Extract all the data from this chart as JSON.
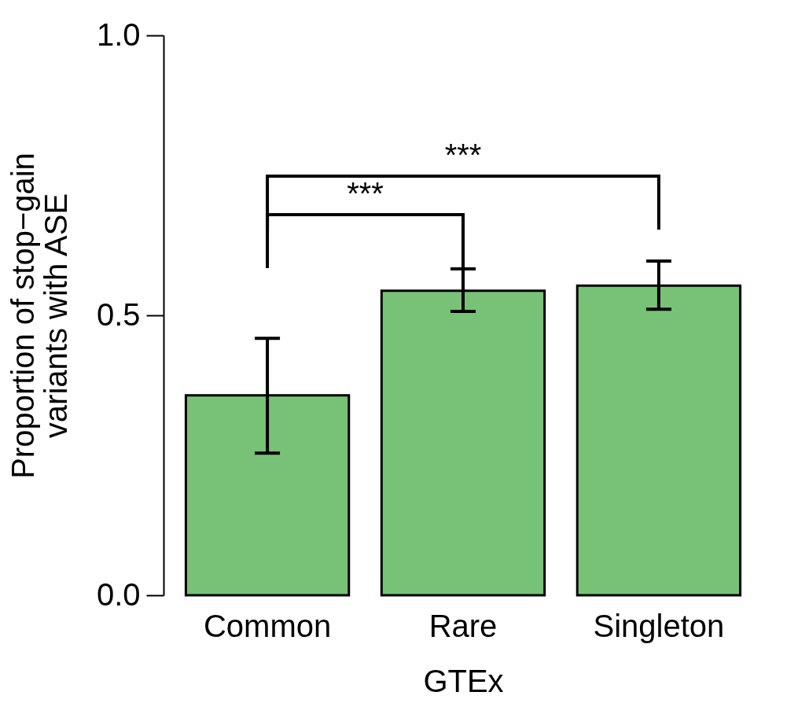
{
  "chart_data": {
    "type": "bar",
    "categories": [
      "Common",
      "Rare",
      "Singleton"
    ],
    "values": [
      0.357,
      0.544,
      0.553
    ],
    "errors": [
      [
        0.254,
        0.459
      ],
      [
        0.507,
        0.583
      ],
      [
        0.511,
        0.597
      ]
    ],
    "color": "#78c277",
    "xlabel": "GTEx",
    "ylabel": "Proportion of stop−gain\nvariants with ASE",
    "ylim": [
      0,
      1
    ],
    "yticks": [
      {
        "value": 0,
        "label": "0.0"
      },
      {
        "value": 0.5,
        "label": "0.5"
      },
      {
        "value": 1,
        "label": "1.0"
      }
    ],
    "grid": false,
    "annotations": [
      "***",
      "***"
    ]
  }
}
